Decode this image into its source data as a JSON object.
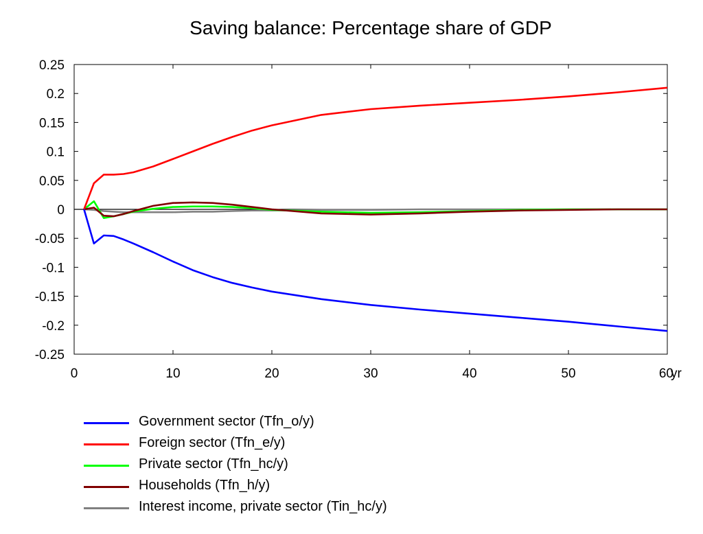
{
  "chart_data": {
    "type": "line",
    "title": "Saving balance: Percentage share of GDP",
    "xlabel": "",
    "ylabel": "",
    "x_unit": "yr",
    "xlim": [
      0,
      60
    ],
    "ylim": [
      -0.25,
      0.25
    ],
    "x_ticks": [
      "0",
      "10",
      "20",
      "30",
      "40",
      "50",
      "60"
    ],
    "y_ticks": [
      "0.25",
      "0.2",
      "0.15",
      "0.1",
      "0.05",
      "0",
      "-0.05",
      "-0.1",
      "-0.15",
      "-0.2",
      "-0.25"
    ],
    "legend_position": "bottom",
    "grid": false,
    "series": [
      {
        "name": "Government sector (Tfn_o/y)",
        "color": "#0000ff",
        "x": [
          1,
          2,
          3,
          4,
          5,
          6,
          8,
          10,
          12,
          14,
          16,
          18,
          20,
          25,
          30,
          35,
          40,
          45,
          50,
          55,
          60
        ],
        "y": [
          0,
          -0.059,
          -0.045,
          -0.046,
          -0.052,
          -0.059,
          -0.074,
          -0.09,
          -0.105,
          -0.117,
          -0.127,
          -0.135,
          -0.142,
          -0.155,
          -0.165,
          -0.173,
          -0.18,
          -0.187,
          -0.194,
          -0.202,
          -0.21
        ]
      },
      {
        "name": "Foreign sector (Tfn_e/y)",
        "color": "#ff0000",
        "x": [
          1,
          2,
          3,
          4,
          5,
          6,
          8,
          10,
          12,
          14,
          16,
          18,
          20,
          25,
          30,
          35,
          40,
          45,
          50,
          55,
          60
        ],
        "y": [
          0,
          0.045,
          0.06,
          0.06,
          0.061,
          0.064,
          0.074,
          0.087,
          0.1,
          0.113,
          0.125,
          0.136,
          0.145,
          0.163,
          0.173,
          0.179,
          0.184,
          0.189,
          0.195,
          0.202,
          0.21
        ]
      },
      {
        "name": "Private sector (Tfn_hc/y)",
        "color": "#00ff00",
        "x": [
          1,
          2,
          3,
          4,
          5,
          6,
          8,
          10,
          12,
          14,
          16,
          18,
          20,
          25,
          30,
          35,
          40,
          45,
          50,
          55,
          60
        ],
        "y": [
          0,
          0.014,
          -0.015,
          -0.012,
          -0.008,
          -0.004,
          0.001,
          0.004,
          0.005,
          0.005,
          0.004,
          0.002,
          -0.001,
          -0.004,
          -0.006,
          -0.005,
          -0.003,
          -0.001,
          0.0,
          0.0,
          0.0
        ]
      },
      {
        "name": "Households (Tfn_h/y)",
        "color": "#800000",
        "x": [
          1,
          2,
          3,
          4,
          5,
          6,
          8,
          10,
          12,
          14,
          16,
          18,
          20,
          25,
          30,
          35,
          40,
          45,
          50,
          55,
          60
        ],
        "y": [
          0,
          0.003,
          -0.011,
          -0.012,
          -0.008,
          -0.003,
          0.006,
          0.011,
          0.012,
          0.011,
          0.008,
          0.004,
          0.0,
          -0.007,
          -0.009,
          -0.007,
          -0.004,
          -0.002,
          -0.001,
          0.0,
          0.0
        ]
      },
      {
        "name": "Interest income, private sector (Tin_hc/y)",
        "color": "#808080",
        "x": [
          1,
          2,
          3,
          4,
          5,
          6,
          8,
          10,
          12,
          14,
          16,
          18,
          20,
          25,
          30,
          35,
          40,
          45,
          50,
          55,
          60
        ],
        "y": [
          0,
          -0.001,
          -0.003,
          -0.004,
          -0.005,
          -0.005,
          -0.005,
          -0.005,
          -0.004,
          -0.004,
          -0.003,
          -0.002,
          -0.002,
          -0.001,
          -0.001,
          0.0,
          0.0,
          0.0,
          0.0,
          0.0,
          0.0
        ]
      }
    ]
  }
}
